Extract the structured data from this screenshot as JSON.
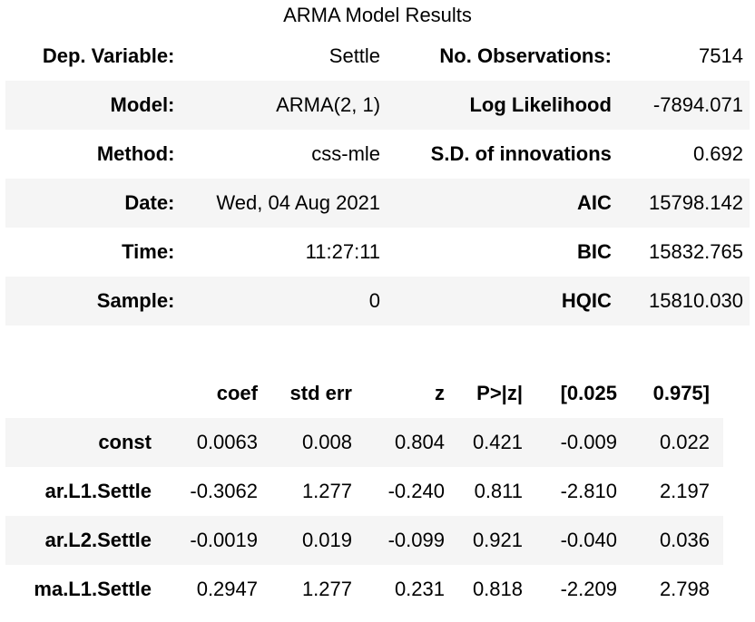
{
  "caption": "ARMA Model Results",
  "summary_rows": [
    {
      "label1": "Dep. Variable:",
      "value1": "Settle",
      "label2": "No. Observations:",
      "value2": "7514"
    },
    {
      "label1": "Model:",
      "value1": "ARMA(2, 1)",
      "label2": "Log Likelihood",
      "value2": "-7894.071"
    },
    {
      "label1": "Method:",
      "value1": "css-mle",
      "label2": "S.D. of innovations",
      "value2": "0.692"
    },
    {
      "label1": "Date:",
      "value1": "Wed, 04 Aug 2021",
      "label2": "AIC",
      "value2": "15798.142"
    },
    {
      "label1": "Time:",
      "value1": "11:27:11",
      "label2": "BIC",
      "value2": "15832.765"
    },
    {
      "label1": "Sample:",
      "value1": "0",
      "label2": "HQIC",
      "value2": "15810.030"
    }
  ],
  "coef_table": {
    "headers": [
      "",
      "coef",
      "std err",
      "z",
      "P>|z|",
      "[0.025",
      "0.975]"
    ],
    "rows": [
      {
        "name": "const",
        "values": [
          "0.0063",
          "0.008",
          "0.804",
          "0.421",
          "-0.009",
          "0.022"
        ]
      },
      {
        "name": "ar.L1.Settle",
        "values": [
          "-0.3062",
          "1.277",
          "-0.240",
          "0.811",
          "-2.810",
          "2.197"
        ]
      },
      {
        "name": "ar.L2.Settle",
        "values": [
          "-0.0019",
          "0.019",
          "-0.099",
          "0.921",
          "-0.040",
          "0.036"
        ]
      },
      {
        "name": "ma.L1.Settle",
        "values": [
          "0.2947",
          "1.277",
          "0.231",
          "0.818",
          "-2.209",
          "2.798"
        ]
      }
    ]
  }
}
